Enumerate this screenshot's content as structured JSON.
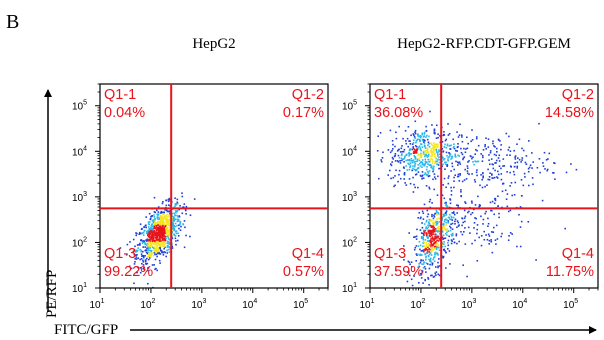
{
  "figure": {
    "panel_label": "B",
    "y_axis_label": "PE/RFP",
    "x_axis_label": "FITC/GFP"
  },
  "colors": {
    "gate_line": "#e8141b",
    "quadrant_text": "#e8141b",
    "density_low": "#1f3fd6",
    "density_mid": "#2ab7ea",
    "density_high": "#f5e61a",
    "density_peak": "#e8141b"
  },
  "chart_data": [
    {
      "type": "scatter",
      "title": "HepG2",
      "x_scale": "log",
      "y_scale": "log",
      "xlim": [
        10,
        300000
      ],
      "ylim": [
        10,
        300000
      ],
      "x_ticks": [
        "10^1",
        "10^2",
        "10^3",
        "10^4",
        "10^5"
      ],
      "y_ticks": [
        "10^1",
        "10^2",
        "10^3",
        "10^4",
        "10^5"
      ],
      "gate": {
        "x": 250,
        "y": 560
      },
      "quadrants": [
        {
          "name": "Q1-1",
          "percent": "0.04%",
          "position": "top-left"
        },
        {
          "name": "Q1-2",
          "percent": "0.17%",
          "position": "top-right"
        },
        {
          "name": "Q1-3",
          "percent": "99.22%",
          "position": "bottom-left"
        },
        {
          "name": "Q1-4",
          "percent": "0.57%",
          "position": "bottom-right"
        }
      ]
    },
    {
      "type": "scatter",
      "title": "HepG2-RFP.CDT-GFP.GEM",
      "x_scale": "log",
      "y_scale": "log",
      "xlim": [
        10,
        300000
      ],
      "ylim": [
        10,
        300000
      ],
      "x_ticks": [
        "10^1",
        "10^2",
        "10^3",
        "10^4",
        "10^5"
      ],
      "y_ticks": [
        "10^1",
        "10^2",
        "10^3",
        "10^4",
        "10^5"
      ],
      "gate": {
        "x": 250,
        "y": 560
      },
      "quadrants": [
        {
          "name": "Q1-1",
          "percent": "36.08%",
          "position": "top-left"
        },
        {
          "name": "Q1-2",
          "percent": "14.58%",
          "position": "top-right"
        },
        {
          "name": "Q1-3",
          "percent": "37.59%",
          "position": "bottom-left"
        },
        {
          "name": "Q1-4",
          "percent": "11.75%",
          "position": "bottom-right"
        }
      ]
    }
  ]
}
